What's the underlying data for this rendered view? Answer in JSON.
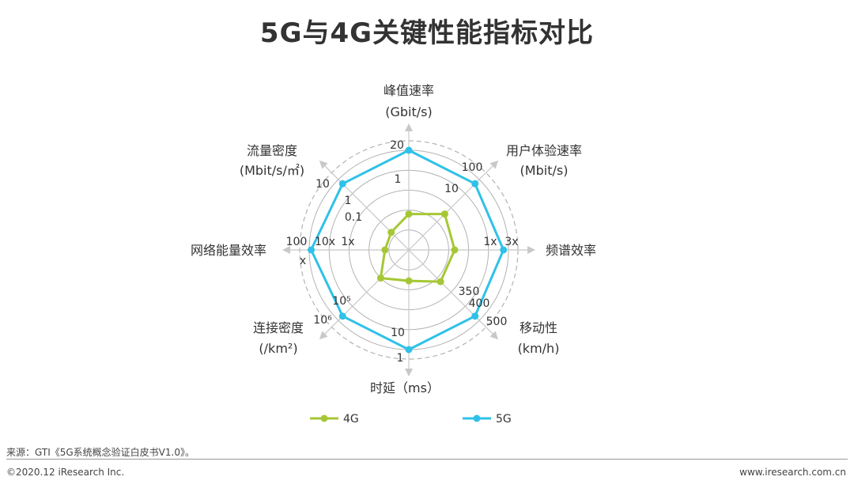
{
  "title": "5G与4G关键性能指标对比",
  "source": "来源：GTI《5G系统概念验证白皮书V1.0》。",
  "copyright": "©2020.12 iResearch Inc.",
  "website": "www.iresearch.com.cn",
  "colors": {
    "g4": "#a6c735",
    "g5": "#2fc1e8",
    "grid": "#b3b3b3",
    "axis": "#c8c8c8"
  },
  "chart_data": {
    "type": "radar",
    "title": "5G与4G关键性能指标对比",
    "axes": [
      {
        "name": "峰值速率",
        "unit": "(Gbit/s)",
        "g4_label": "1",
        "g5_label": "20"
      },
      {
        "name": "用户体验速率",
        "unit": "(Mbit/s)",
        "g4_label": "10",
        "g5_label": "100"
      },
      {
        "name": "频谱效率",
        "unit": "",
        "g4_label": "1x",
        "g5_label": "3x"
      },
      {
        "name": "移动性",
        "unit": "(km/h)",
        "g4_label": "350",
        "g5_label": "500",
        "extra_label": "400"
      },
      {
        "name": "时延（ms）",
        "unit": "",
        "g4_label": "10",
        "g5_label": "1"
      },
      {
        "name": "连接密度",
        "unit": "(/km²)",
        "g4_label": "10⁵",
        "g5_label": "10⁶"
      },
      {
        "name": "网络能量效率",
        "unit": "",
        "g4_label": "1x",
        "g5_label": "100x",
        "extra_label": "10x"
      },
      {
        "name": "流量密度",
        "unit": "(Mbit/s/㎡)",
        "g4_label": "0.1",
        "g5_label": "10",
        "extra_label": "1"
      }
    ],
    "series": [
      {
        "name": "4G",
        "values": [
          0.36,
          0.51,
          0.46,
          0.45,
          0.31,
          0.4,
          0.24,
          0.25
        ]
      },
      {
        "name": "5G",
        "values": [
          1,
          0.94,
          0.95,
          0.94,
          1,
          0.94,
          0.98,
          0.94
        ]
      }
    ],
    "rings": 5
  }
}
